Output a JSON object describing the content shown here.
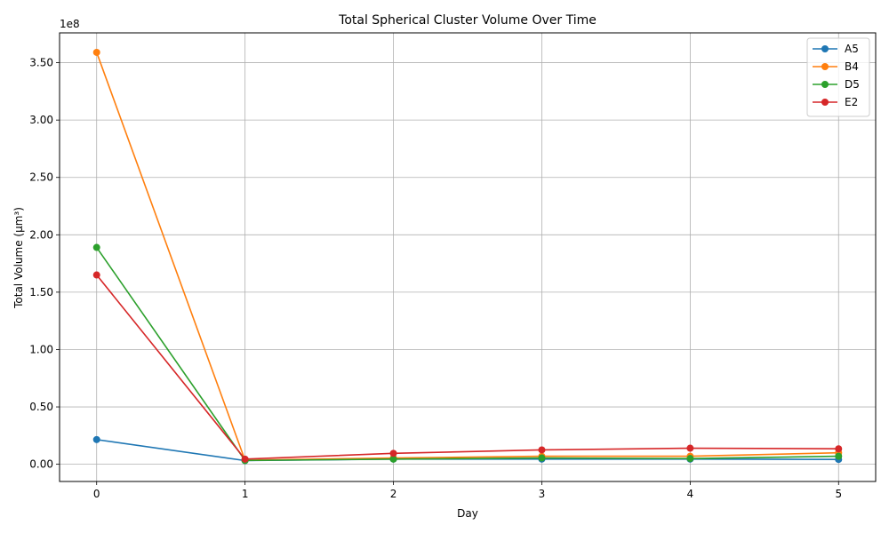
{
  "chart_data": {
    "type": "line",
    "title": "Total Spherical Cluster Volume Over Time",
    "xlabel": "Day",
    "ylabel": "Total Volume (µm³)",
    "y_multiplier_label": "1e8",
    "x": [
      0,
      1,
      2,
      3,
      4,
      5
    ],
    "x_ticks": [
      "0",
      "1",
      "2",
      "3",
      "4",
      "5"
    ],
    "y_ticks": [
      "0.00",
      "0.50",
      "1.00",
      "1.50",
      "2.00",
      "2.50",
      "3.00",
      "3.50"
    ],
    "xlim": [
      -0.25,
      5.25
    ],
    "ylim": [
      -0.15,
      3.76
    ],
    "y_scale_note": "values in units of 1e8",
    "grid": true,
    "legend_position": "top-right",
    "series": [
      {
        "name": "A5",
        "color": "#1f77b4",
        "values": [
          0.215,
          0.032,
          0.045,
          0.045,
          0.045,
          0.042
        ]
      },
      {
        "name": "B4",
        "color": "#ff7f0e",
        "values": [
          3.59,
          0.035,
          0.055,
          0.07,
          0.07,
          0.1
        ]
      },
      {
        "name": "D5",
        "color": "#2ca02c",
        "values": [
          1.89,
          0.033,
          0.045,
          0.055,
          0.05,
          0.07
        ]
      },
      {
        "name": "E2",
        "color": "#d62728",
        "values": [
          1.65,
          0.045,
          0.095,
          0.125,
          0.14,
          0.135
        ]
      }
    ]
  }
}
